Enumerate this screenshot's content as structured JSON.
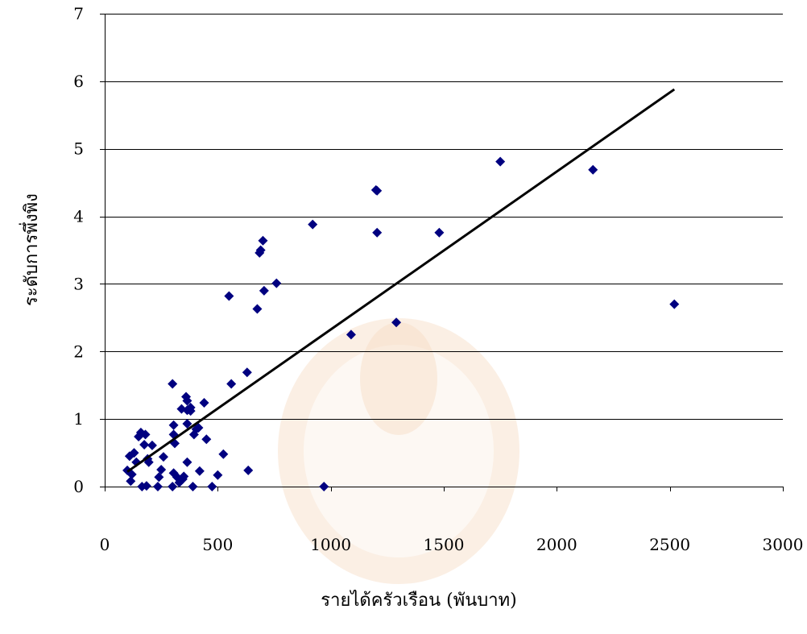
{
  "chart_data": {
    "type": "scatter",
    "title": "",
    "xlabel": "รายได้ครัวเรือน (พันบาท)",
    "ylabel": "ระดับการพึ่งพิง",
    "xlim": [
      0,
      3000
    ],
    "ylim": [
      0,
      7
    ],
    "x_ticks": [
      0,
      500,
      1000,
      1500,
      2000,
      2500,
      3000
    ],
    "y_ticks": [
      0,
      1,
      2,
      3,
      4,
      5,
      6,
      7
    ],
    "x_tick_labels": [
      "0",
      "500",
      "1000",
      "1500",
      "2000",
      "2500",
      "3000"
    ],
    "y_tick_labels": [
      "0",
      "1",
      "2",
      "3",
      "4",
      "5",
      "6",
      "7"
    ],
    "grid": "horizontal",
    "legend": "none",
    "marker_color": "#000080",
    "marker_shape": "diamond",
    "trendline_color": "#000000",
    "series": [
      {
        "points": [
          [
            100,
            0.24
          ],
          [
            110,
            0.45
          ],
          [
            115,
            0.08
          ],
          [
            120,
            0.18
          ],
          [
            130,
            0.5
          ],
          [
            140,
            0.36
          ],
          [
            150,
            0.74
          ],
          [
            160,
            0.8
          ],
          [
            165,
            0.0
          ],
          [
            175,
            0.62
          ],
          [
            180,
            0.77
          ],
          [
            185,
            0.01
          ],
          [
            190,
            0.41
          ],
          [
            195,
            0.36
          ],
          [
            210,
            0.61
          ],
          [
            235,
            0.0
          ],
          [
            240,
            0.14
          ],
          [
            250,
            0.25
          ],
          [
            260,
            0.44
          ],
          [
            300,
            1.52
          ],
          [
            300,
            0.0
          ],
          [
            305,
            0.2
          ],
          [
            305,
            0.77
          ],
          [
            305,
            0.91
          ],
          [
            310,
            0.64
          ],
          [
            320,
            0.14
          ],
          [
            330,
            0.06
          ],
          [
            340,
            1.15
          ],
          [
            345,
            0.11
          ],
          [
            350,
            0.15
          ],
          [
            360,
            1.33
          ],
          [
            365,
            1.13
          ],
          [
            365,
            1.27
          ],
          [
            365,
            0.36
          ],
          [
            365,
            0.93
          ],
          [
            380,
            1.12
          ],
          [
            380,
            1.17
          ],
          [
            390,
            0.0
          ],
          [
            395,
            0.77
          ],
          [
            405,
            0.85
          ],
          [
            415,
            0.87
          ],
          [
            420,
            0.23
          ],
          [
            440,
            1.24
          ],
          [
            450,
            0.7
          ],
          [
            475,
            0.0
          ],
          [
            500,
            0.17
          ],
          [
            525,
            0.48
          ],
          [
            550,
            2.82
          ],
          [
            560,
            1.52
          ],
          [
            630,
            1.69
          ],
          [
            635,
            0.24
          ],
          [
            675,
            2.63
          ],
          [
            685,
            3.46
          ],
          [
            690,
            3.5
          ],
          [
            700,
            3.64
          ],
          [
            705,
            2.9
          ],
          [
            760,
            3.01
          ],
          [
            920,
            3.88
          ],
          [
            970,
            0.0
          ],
          [
            1090,
            2.25
          ],
          [
            1200,
            4.39
          ],
          [
            1205,
            4.38
          ],
          [
            1205,
            3.76
          ],
          [
            1290,
            2.43
          ],
          [
            1480,
            3.76
          ],
          [
            1750,
            4.81
          ],
          [
            2160,
            4.69
          ],
          [
            2520,
            2.7
          ]
        ]
      }
    ],
    "trendline": {
      "type": "linear",
      "x": [
        100,
        2520
      ],
      "y": [
        0.22,
        5.88
      ]
    }
  }
}
